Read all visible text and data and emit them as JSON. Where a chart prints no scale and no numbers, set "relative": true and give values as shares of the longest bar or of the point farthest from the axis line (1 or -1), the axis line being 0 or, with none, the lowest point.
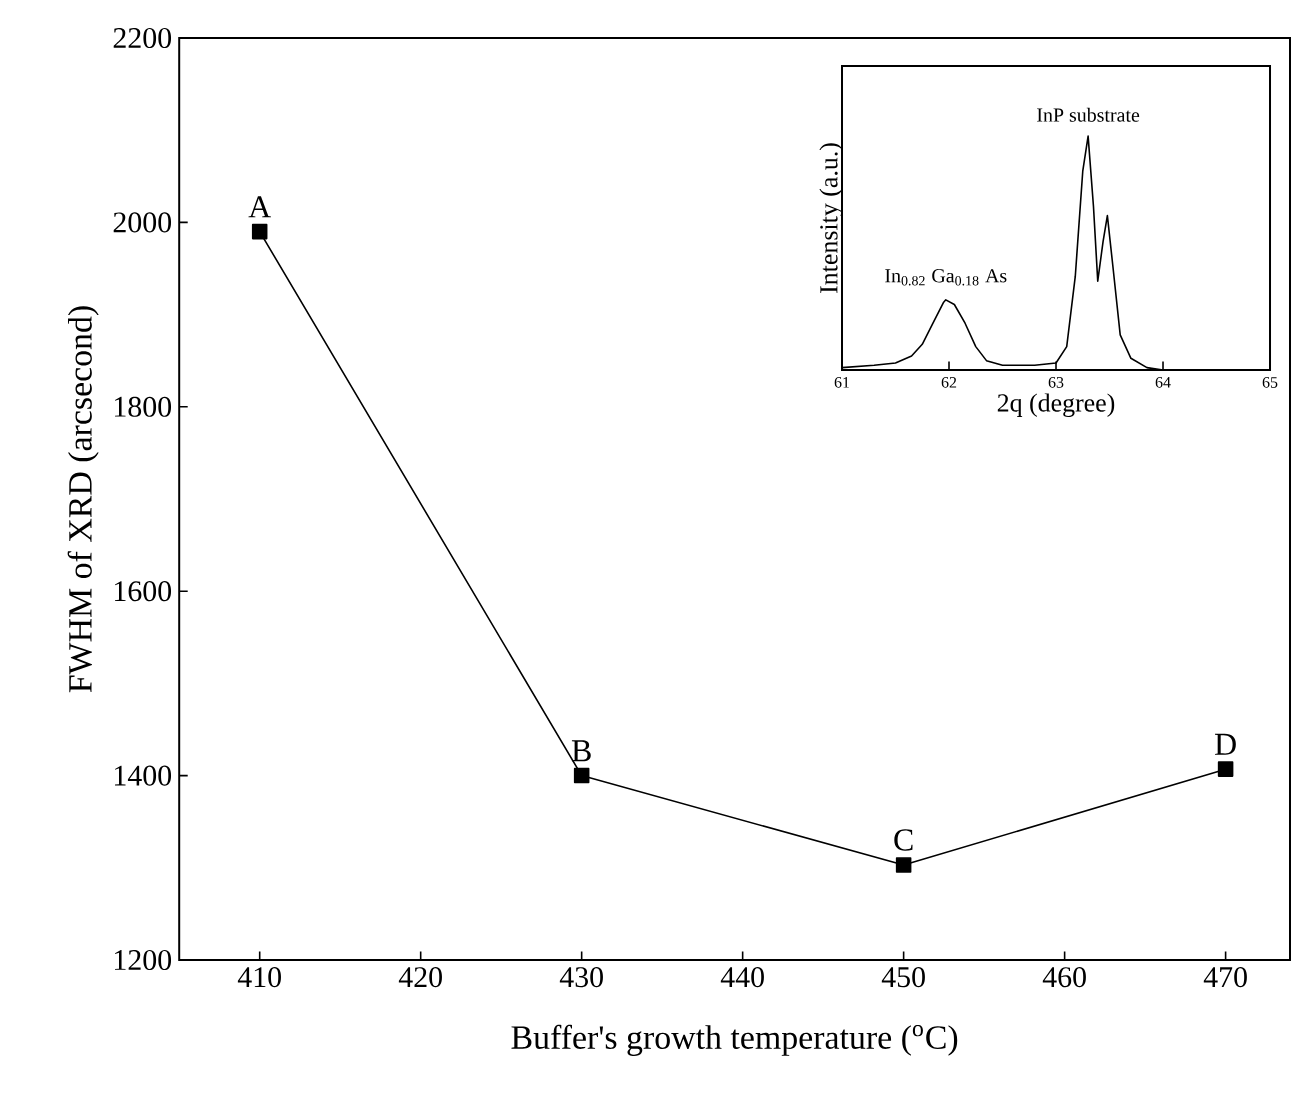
{
  "chart_data": [
    {
      "type": "line",
      "xlabel": "Buffer's growth temperature ($^{o}$C)",
      "ylabel": "FWHM of XRD (arcsecond)",
      "x": [
        410,
        430,
        450,
        470
      ],
      "series": [
        {
          "color": "#000000",
          "values": [
            1990,
            1400,
            1303,
            1407
          ]
        }
      ],
      "xlim": [
        405,
        474
      ],
      "ylim": [
        1200,
        2200
      ],
      "xticks": [
        410,
        420,
        430,
        440,
        450,
        460,
        470
      ],
      "yticks": [
        1200,
        1400,
        1600,
        1800,
        2000,
        2200
      ],
      "marker": "square",
      "line_style": "solid",
      "annotations": [
        {
          "text": "A",
          "x": 410,
          "y": 1990
        },
        {
          "text": "B",
          "x": 430,
          "y": 1400
        },
        {
          "text": "C",
          "x": 450,
          "y": 1303
        },
        {
          "text": "D",
          "x": 470,
          "y": 1407
        }
      ]
    },
    {
      "type": "line",
      "relative": true,
      "xlabel": "2q  (degree)",
      "ylabel": "Intensity (a.u.)",
      "x": [
        61.0,
        61.3,
        61.5,
        61.65,
        61.75,
        61.85,
        61.95,
        61.97,
        62.05,
        62.15,
        62.25,
        62.35,
        62.5,
        62.8,
        63.0,
        63.1,
        63.18,
        63.25,
        63.3,
        63.35,
        63.39,
        63.44,
        63.48,
        63.53,
        63.6,
        63.7,
        63.85,
        64.0,
        64.5,
        65.0
      ],
      "series": [
        {
          "color": "#000000",
          "values": [
            0.01,
            0.02,
            0.03,
            0.06,
            0.11,
            0.2,
            0.29,
            0.3,
            0.28,
            0.2,
            0.1,
            0.04,
            0.02,
            0.02,
            0.03,
            0.1,
            0.4,
            0.85,
            1.0,
            0.7,
            0.38,
            0.55,
            0.66,
            0.45,
            0.15,
            0.05,
            0.01,
            0.0,
            0.0,
            0.0
          ]
        }
      ],
      "xlim": [
        61,
        65
      ],
      "xticks": [
        61,
        62,
        63,
        64,
        65
      ],
      "marker": "none",
      "line_style": "solid",
      "annotations": [
        {
          "text": "In$_{0.82}$ Ga$_{0.18}$ As",
          "x": 61.97,
          "y": 0.3
        },
        {
          "text": "InP substrate",
          "x": 63.3,
          "y": 1.0
        }
      ]
    }
  ]
}
